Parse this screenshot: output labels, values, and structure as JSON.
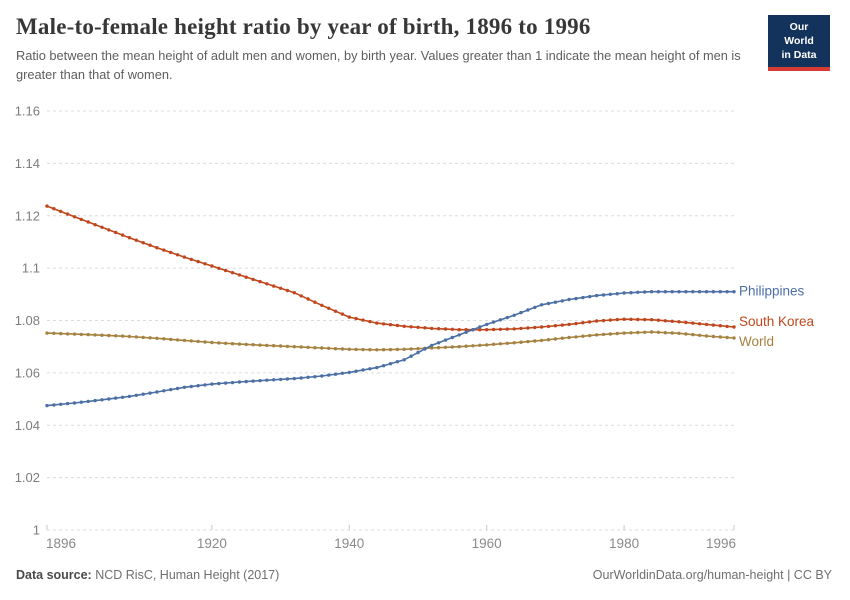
{
  "header": {
    "title": "Male-to-female height ratio by year of birth, 1896 to 1996",
    "subtitle": "Ratio between the mean height of adult men and women, by birth year. Values greater than 1 indicate the mean height of men is greater than that of women.",
    "logo": {
      "line1": "Our World",
      "line2": "in Data",
      "bg": "#14335C",
      "accent": "#D73C34"
    }
  },
  "footer": {
    "source_label": "Data source:",
    "source_value": " NCD RisC, Human Height (2017)",
    "credit": "OurWorldinData.org/human-height | CC BY"
  },
  "chart_data": {
    "type": "line",
    "title": "Male-to-female height ratio by year of birth, 1896 to 1996",
    "xlabel": "",
    "ylabel": "",
    "xlim": [
      1896,
      1996
    ],
    "ylim": [
      1,
      1.16
    ],
    "xticks": [
      1896,
      1920,
      1940,
      1960,
      1980,
      1996
    ],
    "yticks": [
      1,
      1.02,
      1.04,
      1.06,
      1.08,
      1.1,
      1.12,
      1.14,
      1.16
    ],
    "grid": "horizontal-dashed",
    "legend_position": "right-of-line-ends",
    "markers": "small dot at every year",
    "x": [
      1896,
      1900,
      1904,
      1908,
      1912,
      1916,
      1920,
      1924,
      1928,
      1932,
      1936,
      1940,
      1944,
      1948,
      1952,
      1956,
      1960,
      1964,
      1968,
      1972,
      1976,
      1980,
      1984,
      1988,
      1992,
      1996
    ],
    "series": [
      {
        "name": "Philippines",
        "color": "#4C6FA6",
        "values": [
          1.0475,
          1.0485,
          1.0497,
          1.051,
          1.0527,
          1.0545,
          1.0557,
          1.0565,
          1.0572,
          1.0578,
          1.0588,
          1.0602,
          1.062,
          1.065,
          1.0705,
          1.0745,
          1.0785,
          1.082,
          1.086,
          1.088,
          1.0895,
          1.0905,
          1.091,
          1.091,
          1.091,
          1.091
        ]
      },
      {
        "name": "South Korea",
        "color": "#C0471D",
        "values": [
          1.1237,
          1.1196,
          1.1156,
          1.1116,
          1.1078,
          1.1042,
          1.1008,
          1.0974,
          1.094,
          1.0906,
          1.0858,
          1.0813,
          1.079,
          1.0778,
          1.077,
          1.0765,
          1.0765,
          1.0768,
          1.0775,
          1.0785,
          1.0798,
          1.0805,
          1.0803,
          1.0795,
          1.0785,
          1.0775
        ]
      },
      {
        "name": "World",
        "color": "#A5823F",
        "values": [
          1.0752,
          1.0748,
          1.0744,
          1.0739,
          1.0732,
          1.0724,
          1.0716,
          1.071,
          1.0705,
          1.07,
          1.0695,
          1.069,
          1.0688,
          1.069,
          1.0695,
          1.07,
          1.0707,
          1.0715,
          1.0724,
          1.0735,
          1.0745,
          1.0752,
          1.0756,
          1.0751,
          1.0741,
          1.0733
        ]
      }
    ]
  }
}
